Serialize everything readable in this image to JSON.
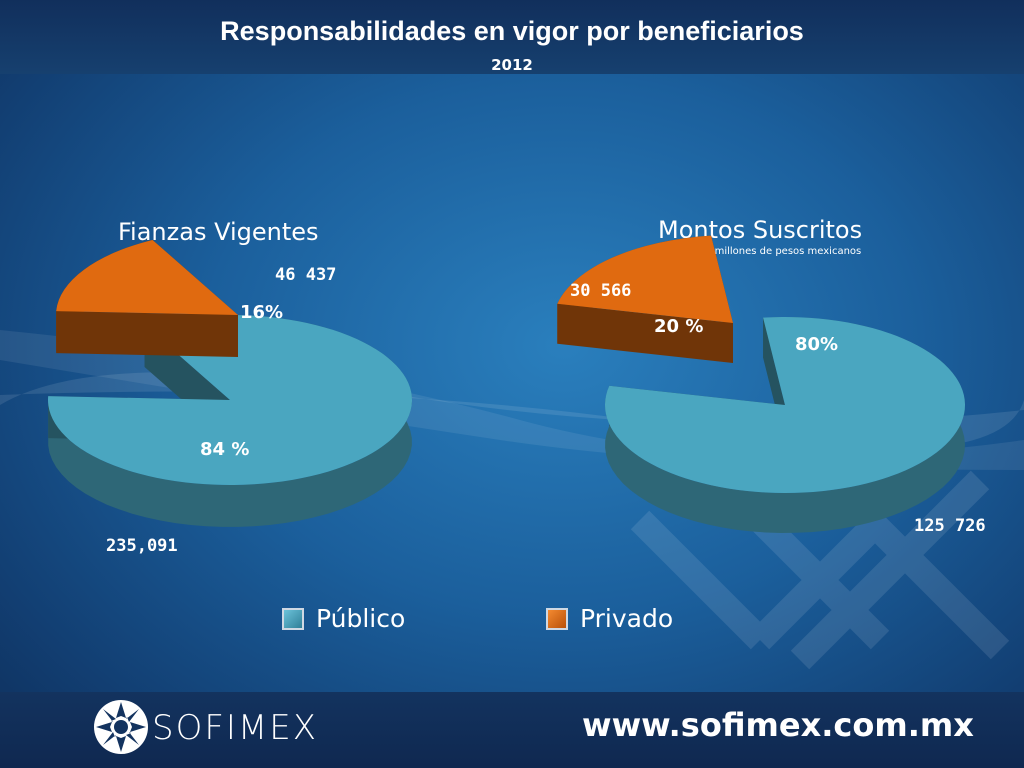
{
  "header": {
    "title": "Responsabilidades en vigor por beneficiarios",
    "year": "2012"
  },
  "colors": {
    "publico": "#4aa6c0",
    "privado": "#e06a10"
  },
  "chart_data": [
    {
      "type": "pie",
      "title": "Fianzas Vigentes",
      "subtitle": "",
      "slices": [
        {
          "name": "Público",
          "value": 235091,
          "value_label": "235,091",
          "pct_label": "84 %"
        },
        {
          "name": "Privado",
          "value": 46437,
          "value_label": "46 437",
          "pct_label": "16%"
        }
      ]
    },
    {
      "type": "pie",
      "title": "Montos Suscritos",
      "subtitle": "Cifras en millones de pesos mexicanos",
      "slices": [
        {
          "name": "Público",
          "value": 125726,
          "value_label": "125 726",
          "pct_label": "80%"
        },
        {
          "name": "Privado",
          "value": 30566,
          "value_label": "30 566",
          "pct_label": "20 %"
        }
      ]
    }
  ],
  "legend": [
    {
      "label": "Público",
      "color": "#4aa6c0"
    },
    {
      "label": "Privado",
      "color": "#e06a10"
    }
  ],
  "footer": {
    "logo_text": "SOFIMEX",
    "website": "www.sofimex.com.mx"
  }
}
